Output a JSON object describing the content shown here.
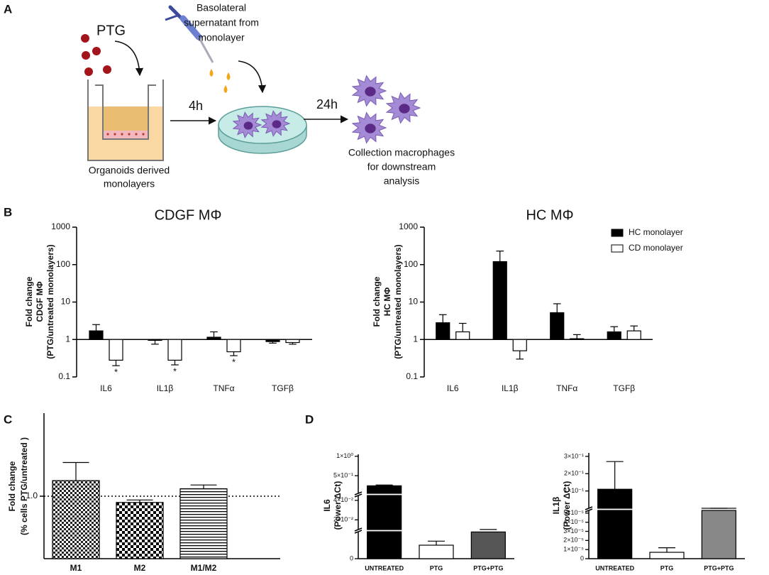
{
  "panel_labels": [
    "A",
    "B",
    "C",
    "D"
  ],
  "panel_a": {
    "ptg": "PTG",
    "supernatant": [
      "Basolateral",
      "supernatant from",
      "monolayer"
    ],
    "step1": "4h",
    "step2": "24h",
    "monolayer": [
      "Organoids derived",
      "monolayers"
    ],
    "collection": [
      "Collection macrophages",
      "for downstream",
      "analysis"
    ]
  },
  "chart_data": [
    {
      "type": "bar",
      "title": "CDGF MΦ",
      "ylabel": [
        "Fold change",
        "CDGF MΦ",
        "(PTG/untreated monolayers)"
      ],
      "log_scale": true,
      "baseline": 1,
      "ylim": [
        0.1,
        1000
      ],
      "yticks": [
        0.1,
        1,
        10,
        100,
        1000
      ],
      "categories": [
        "IL6",
        "IL1β",
        "TNFα",
        "TGFβ"
      ],
      "series": [
        {
          "color": "#000000",
          "values": [
            1.7,
            0.95,
            1.15,
            0.88
          ],
          "errors": [
            0.8,
            0.2,
            0.45,
            0.08
          ]
        },
        {
          "color": "#ffffff",
          "values": [
            0.28,
            0.28,
            0.47,
            0.83
          ],
          "errors": [
            0.08,
            0.07,
            0.1,
            0.08
          ],
          "markers": [
            "*",
            "*",
            "*",
            null
          ]
        }
      ]
    },
    {
      "type": "bar",
      "title": "HC MΦ",
      "ylabel": [
        "Fold change",
        "HC MΦ",
        "(PTG/untreated monolayers)"
      ],
      "log_scale": true,
      "baseline": 1,
      "ylim": [
        0.1,
        1000
      ],
      "yticks": [
        0.1,
        1,
        10,
        100,
        1000
      ],
      "categories": [
        "IL6",
        "IL1β",
        "TNFα",
        "TGFβ"
      ],
      "legend": "top-right",
      "series": [
        {
          "name": "HC monolayer",
          "color": "#000000",
          "values": [
            2.8,
            120,
            5.2,
            1.6
          ],
          "errors": [
            1.8,
            110,
            3.8,
            0.6
          ]
        },
        {
          "name": "CD monolayer",
          "color": "#ffffff",
          "values": [
            1.6,
            0.5,
            1.05,
            1.7
          ],
          "errors": [
            1.1,
            0.2,
            0.3,
            0.6
          ]
        }
      ]
    },
    {
      "type": "bar",
      "ylabel": [
        "Fold change",
        "(% cells PTG/untreated )"
      ],
      "ylim": [
        0,
        2.33
      ],
      "yticks": [
        {
          "value": 1,
          "label": "1.0"
        }
      ],
      "reference_line": 1,
      "categories": [
        "M1",
        "M2",
        "M1/M2"
      ],
      "patterns": [
        "checker",
        "fine-checker",
        "stripes"
      ],
      "series": [
        {
          "color": "#000000",
          "values": [
            1.25,
            0.9,
            1.12
          ],
          "errors": [
            0.29,
            0.04,
            0.06
          ]
        }
      ]
    },
    {
      "type": "broken_bar",
      "ylabel": [
        "IL6",
        "(Power ΔCt)"
      ],
      "categories": [
        "UNTREATED",
        "PTG",
        "PTG+PTG"
      ],
      "colors": [
        "#000000",
        "#ffffff",
        "#555555"
      ],
      "segments": [
        {
          "ylim": [
            0,
            0.01
          ],
          "yticks": [
            0
          ]
        },
        {
          "ylim": [
            0.01,
            0.045
          ],
          "yticks": [
            {
              "value": 0.02,
              "label": "2×10⁻²"
            },
            {
              "value": 0.04,
              "label": "4×10⁻²"
            }
          ]
        },
        {
          "ylim": [
            0.045,
            1.05
          ],
          "yticks": [
            {
              "value": 0.5,
              "label": "5×10⁻¹"
            },
            {
              "value": 1,
              "label": "1×10⁰"
            }
          ]
        }
      ],
      "values": [
        0.24,
        0.005,
        0.0099
      ],
      "errors": [
        0.02,
        0.0015,
        0.0002
      ]
    },
    {
      "type": "broken_bar",
      "ylabel": [
        "IL1β",
        "(Power ΔCt)"
      ],
      "categories": [
        "UNTREATED",
        "PTG",
        "PTG+PTG"
      ],
      "colors": [
        "#000000",
        "#ffffff",
        "#888888"
      ],
      "segments": [
        {
          "ylim": [
            0,
            5.3e-05
          ],
          "yticks": [
            0,
            {
              "value": 1e-05,
              "label": "1×10⁻⁵"
            },
            {
              "value": 2e-05,
              "label": "2×10⁻⁵"
            },
            {
              "value": 3e-05,
              "label": "3×10⁻⁵"
            },
            {
              "value": 4e-05,
              "label": "4×10⁻⁵"
            },
            {
              "value": 5e-05,
              "label": "5×10⁻⁵"
            }
          ]
        },
        {
          "ylim": [
            5.3e-05,
            0.32
          ],
          "yticks": [
            {
              "value": 0.1,
              "label": "1×10⁻¹"
            },
            {
              "value": 0.2,
              "label": "2×10⁻¹"
            },
            {
              "value": 0.3,
              "label": "3×10⁻¹"
            }
          ]
        }
      ],
      "values": [
        0.11,
        7e-06,
        5.5e-05
      ],
      "errors": [
        0.16,
        5e-06,
        1e-06
      ]
    }
  ]
}
